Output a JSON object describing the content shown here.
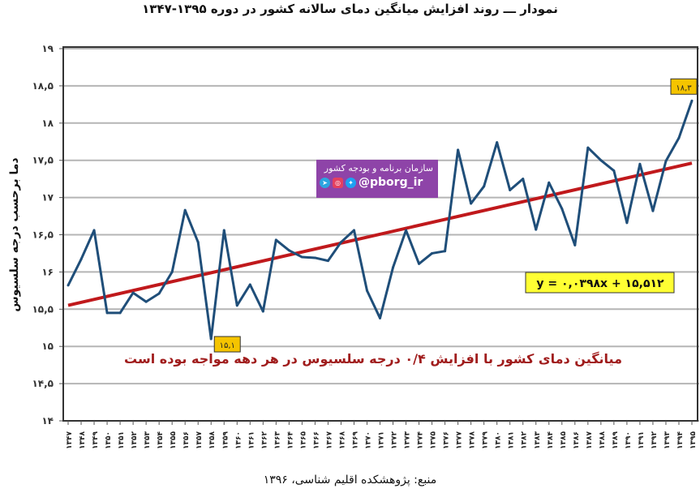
{
  "title": "نمودار ـــ روند افزایش میانگین دمای سالانه کشور در دوره ۱۳۹۵-۱۳۴۷",
  "source": "منبع: پژوهشکده اقلیم شناسی، ۱۳۹۶",
  "watermark": {
    "line1": "سازمان برنامه و بودجه کشور",
    "handle": "@pborg_ir",
    "icons": [
      "telegram-icon",
      "instagram-icon",
      "twitter-icon"
    ]
  },
  "chart_data": {
    "type": "line",
    "title": "",
    "ylabel": "دما برحسب درجه سلسیوس",
    "xlabel": "",
    "ylim": [
      14,
      19
    ],
    "grid": true,
    "yticks": [
      {
        "v": 14,
        "label": "۱۴"
      },
      {
        "v": 14.5,
        "label": "۱۴,۵"
      },
      {
        "v": 15,
        "label": "۱۵"
      },
      {
        "v": 15.5,
        "label": "۱۵,۵"
      },
      {
        "v": 16,
        "label": "۱۶"
      },
      {
        "v": 16.5,
        "label": "۱۶,۵"
      },
      {
        "v": 17,
        "label": "۱۷"
      },
      {
        "v": 17.5,
        "label": "۱۷,۵"
      },
      {
        "v": 18,
        "label": "۱۸"
      },
      {
        "v": 18.5,
        "label": "۱۸,۵"
      },
      {
        "v": 19,
        "label": "۱۹"
      }
    ],
    "categories": [
      "۱۳۴۷",
      "۱۳۴۸",
      "۱۳۴۹",
      "۱۳۵۰",
      "۱۳۵۱",
      "۱۳۵۲",
      "۱۳۵۳",
      "۱۳۵۴",
      "۱۳۵۵",
      "۱۳۵۶",
      "۱۳۵۷",
      "۱۳۵۸",
      "۱۳۵۹",
      "۱۳۶۰",
      "۱۳۶۱",
      "۱۳۶۲",
      "۱۳۶۳",
      "۱۳۶۴",
      "۱۳۶۵",
      "۱۳۶۶",
      "۱۳۶۷",
      "۱۳۶۸",
      "۱۳۶۹",
      "۱۳۷۰",
      "۱۳۷۱",
      "۱۳۷۲",
      "۱۳۷۳",
      "۱۳۷۴",
      "۱۳۷۵",
      "۱۳۷۶",
      "۱۳۷۷",
      "۱۳۷۸",
      "۱۳۷۹",
      "۱۳۸۰",
      "۱۳۸۱",
      "۱۳۸۲",
      "۱۳۸۳",
      "۱۳۸۴",
      "۱۳۸۵",
      "۱۳۸۶",
      "۱۳۸۷",
      "۱۳۸۸",
      "۱۳۸۹",
      "۱۳۹۰",
      "۱۳۹۱",
      "۱۳۹۲",
      "۱۳۹۳",
      "۱۳۹۴",
      "۱۳۹۵"
    ],
    "series": [
      {
        "values": [
          15.82,
          16.17,
          16.56,
          15.45,
          15.45,
          15.72,
          15.6,
          15.71,
          16.0,
          16.83,
          16.4,
          15.1,
          16.56,
          15.55,
          15.83,
          15.47,
          16.43,
          16.29,
          16.2,
          16.19,
          16.15,
          16.4,
          16.56,
          15.75,
          15.38,
          16.06,
          16.56,
          16.11,
          16.25,
          16.28,
          17.64,
          16.92,
          17.15,
          17.74,
          17.1,
          17.25,
          16.57,
          17.2,
          16.85,
          16.36,
          17.67,
          17.5,
          17.36,
          16.66,
          17.45,
          16.82,
          17.49,
          17.8,
          18.3
        ],
        "color": "#1f4e79"
      }
    ],
    "trendline": {
      "slope": 0.0398,
      "intercept": 15.512,
      "color": "#c0191c",
      "equation": "y = ۰,۰۳۹۸x + ۱۵,۵۱۲"
    },
    "annotations": [
      {
        "index": 11,
        "label": "۱۵,۱"
      },
      {
        "index": 48,
        "label": "۱۸,۳"
      },
      {
        "text": "میانگین دمای کشور با افزایش ۰/۴ درجه سلسیوس در هر دهه مواجه بوده است",
        "color": "#a01c1c"
      }
    ]
  }
}
